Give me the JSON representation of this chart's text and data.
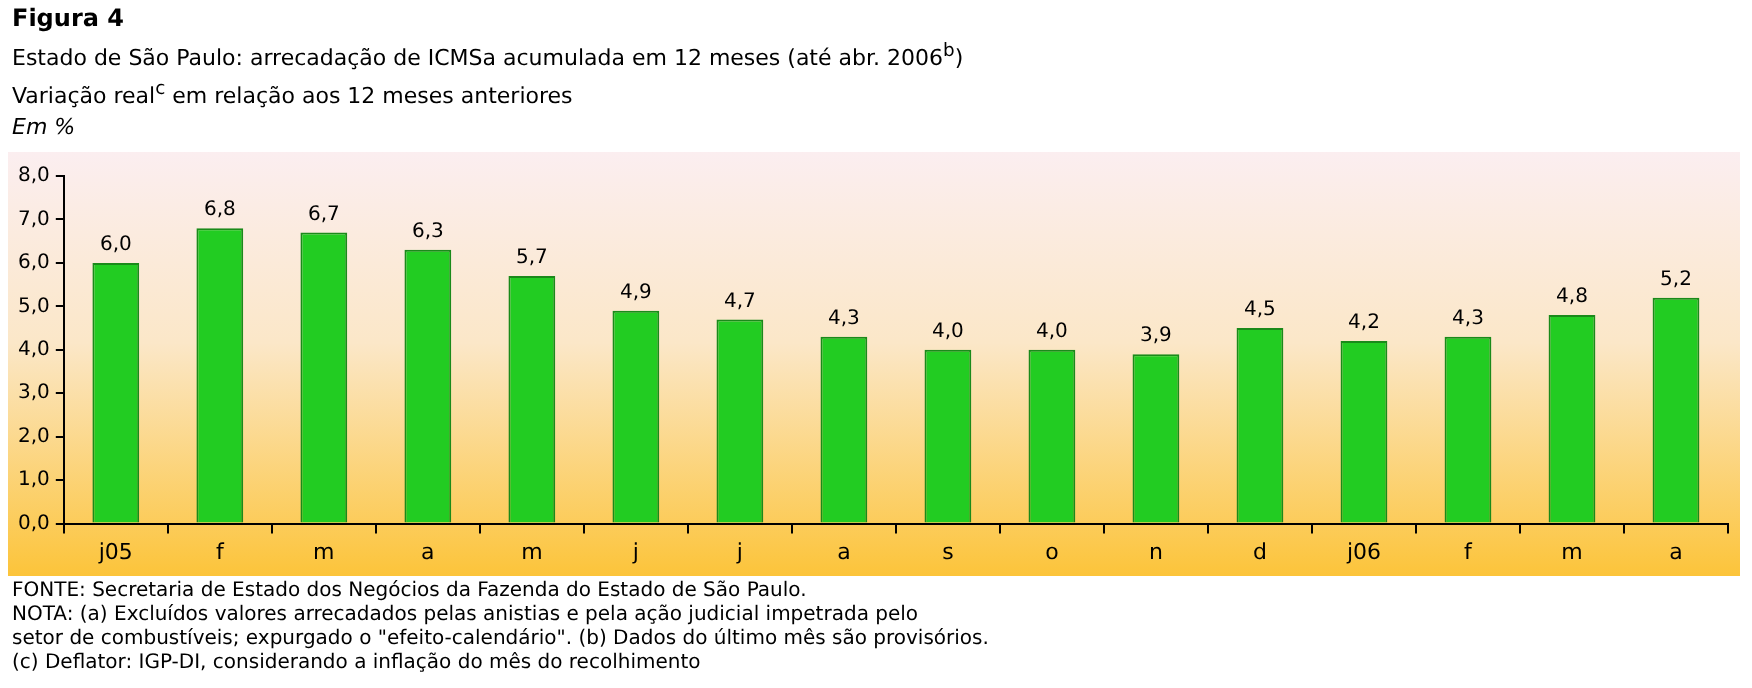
{
  "chart_data": {
    "type": "bar",
    "title": "Figura 4",
    "subtitle": "Estado de São Paulo: arrecadação de ICMSa acumulada em 12 meses (até abr. 2006$^{b}$)\nVariação real$^{c}$ em relação aos 12 meses anteriores",
    "ylabel": "Em %",
    "categories": [
      "j05",
      "f",
      "m",
      "a",
      "m",
      "j",
      "j",
      "a",
      "s",
      "o",
      "n",
      "d",
      "j06",
      "f",
      "m",
      "a"
    ],
    "values": [
      6.0,
      6.8,
      6.7,
      6.3,
      5.7,
      4.9,
      4.7,
      4.3,
      4.0,
      4.0,
      3.9,
      4.5,
      4.2,
      4.3,
      4.8,
      5.2
    ],
    "value_labels": [
      "6,0",
      "6,8",
      "6,7",
      "6,3",
      "5,7",
      "4,9",
      "4,7",
      "4,3",
      "4,0",
      "4,0",
      "3,9",
      "4,5",
      "4,2",
      "4,3",
      "4,8",
      "5,2"
    ],
    "color": "#22cc22",
    "ylim": [
      0,
      8
    ],
    "yticks": [
      {
        "value": 0,
        "label": "0,0"
      },
      {
        "value": 1,
        "label": "1,0"
      },
      {
        "value": 2,
        "label": "2,0"
      },
      {
        "value": 3,
        "label": "3,0"
      },
      {
        "value": 4,
        "label": "4,0"
      },
      {
        "value": 5,
        "label": "5,0"
      },
      {
        "value": 6,
        "label": "6,0"
      },
      {
        "value": 7,
        "label": "7,0"
      },
      {
        "value": 8,
        "label": "8,0"
      }
    ],
    "grid": false,
    "legend": false,
    "annotations": [
      "FONTE: Secretaria de Estado dos Negócios da Fazenda do Estado de São Paulo.",
      "NOTA: (a) Excluídos valores arrecadados pelas anistias e pela ação judicial impetrada pelo",
      "setor de combustíveis; expurgado o \"efeito-calendário\". (b) Dados do último mês são provisórios.",
      "(c) Deflator: IGP-DI, considerando a inflação do mês do recolhimento"
    ]
  }
}
